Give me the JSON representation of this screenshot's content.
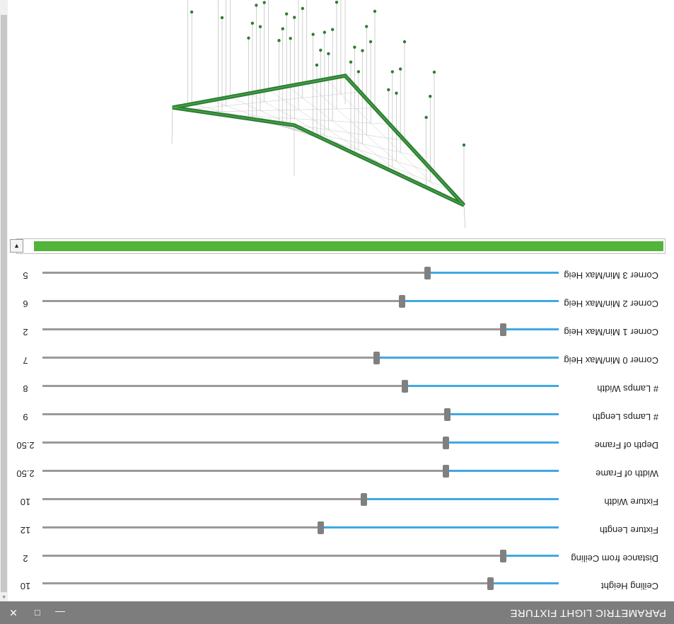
{
  "window": {
    "title": "PARAMETRIC LIGHT FIXTURE",
    "minimize_glyph": "—",
    "maximize_glyph": "□",
    "close_glyph": "✕"
  },
  "colors": {
    "titlebar": "#7d7d7d",
    "slider_active": "#3fa9e0",
    "slider_inactive": "#9a9a9a",
    "progress": "#52b43a",
    "frame": "#2e7d32",
    "lamp": "#2e7d32"
  },
  "sliders": [
    {
      "label": "Ceiling Height",
      "value": "10",
      "fraction": 0.132
    },
    {
      "label": "Distance from Ceiling",
      "value": "2",
      "fraction": 0.107
    },
    {
      "label": "Fixture Length",
      "value": "12",
      "fraction": 0.46
    },
    {
      "label": "Fixture Width",
      "value": "10",
      "fraction": 0.377
    },
    {
      "label": "Width of Frame",
      "value": "2.50",
      "fraction": 0.218
    },
    {
      "label": "Depth of Frame",
      "value": "2.50",
      "fraction": 0.218
    },
    {
      "label": "# Lamps Length",
      "value": "9",
      "fraction": 0.215
    },
    {
      "label": "# Lamps Width",
      "value": "8",
      "fraction": 0.297
    },
    {
      "label": "Corner 0 Min/Max Heig",
      "value": "7",
      "fraction": 0.352
    },
    {
      "label": "Corner 1 Min/Max Heig",
      "value": "2",
      "fraction": 0.107
    },
    {
      "label": "Corner 2 Min/Max Heig",
      "value": "6",
      "fraction": 0.303
    },
    {
      "label": "Corner 3 Min/Max Heig",
      "value": "5",
      "fraction": 0.253
    }
  ],
  "progress": {
    "fraction": 1.0,
    "collapse_glyph": "▼"
  },
  "viewport": {
    "frame_thickness": 2.5
  }
}
